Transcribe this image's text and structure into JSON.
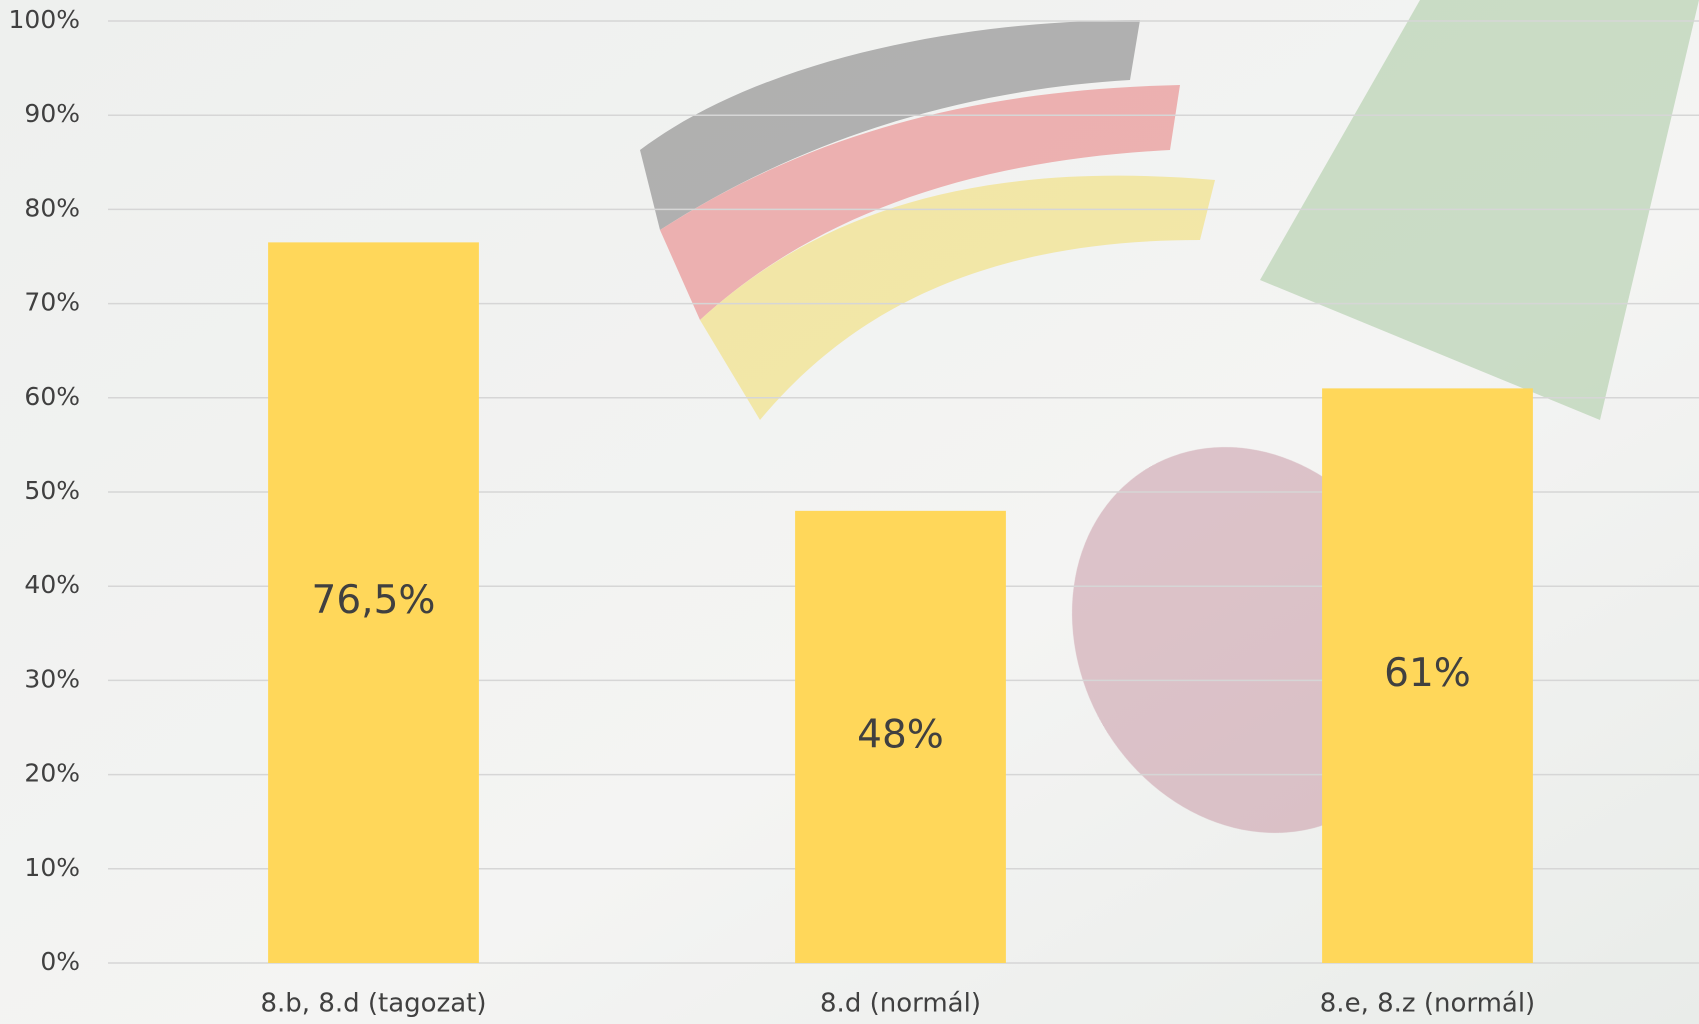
{
  "chart_data": {
    "type": "bar",
    "categories": [
      "8.b, 8.d (tagozat)",
      "8.d (normál)",
      "8.e, 8.z (normál)"
    ],
    "values": [
      76.5,
      48,
      61
    ],
    "value_labels": [
      "76,5%",
      "48%",
      "61%"
    ],
    "color": "#ffd75a",
    "ylim": [
      0,
      100
    ],
    "yticks": [
      {
        "value": 0,
        "label": "0%"
      },
      {
        "value": 10,
        "label": "10%"
      },
      {
        "value": 20,
        "label": "20%"
      },
      {
        "value": 30,
        "label": "30%"
      },
      {
        "value": 40,
        "label": "40%"
      },
      {
        "value": 50,
        "label": "50%"
      },
      {
        "value": 60,
        "label": "60%"
      },
      {
        "value": 70,
        "label": "70%"
      },
      {
        "value": 80,
        "label": "80%"
      },
      {
        "value": 90,
        "label": "90%"
      },
      {
        "value": 100,
        "label": "100%"
      }
    ],
    "grid": true
  }
}
